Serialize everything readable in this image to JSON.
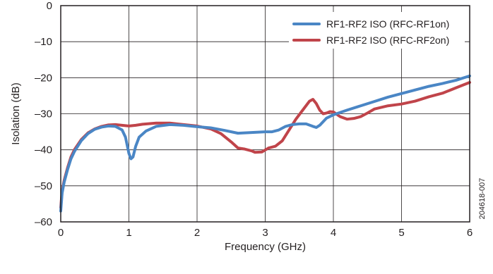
{
  "chart_data": {
    "type": "line",
    "title": "",
    "xlabel": "Frequency (GHz)",
    "ylabel": "Isolation (dB)",
    "xlim": [
      0,
      6
    ],
    "ylim": [
      -60,
      0
    ],
    "xticks": [
      0,
      1,
      2,
      3,
      4,
      5,
      6
    ],
    "yticks": [
      -60,
      -50,
      -40,
      -30,
      -20,
      -10,
      0
    ],
    "xtick_labels": [
      "0",
      "1",
      "2",
      "3",
      "4",
      "5",
      "6"
    ],
    "ytick_labels": [
      "–60",
      "–50",
      "–40",
      "–30",
      "–20",
      "–10",
      "0"
    ],
    "grid": true,
    "legend_position": "top-right",
    "figure_id": "204618-007",
    "series": [
      {
        "name": "RF1-RF2 ISO (RFC-RF1on)",
        "color": "#4a86c5",
        "points": [
          [
            0.0,
            -57
          ],
          [
            0.02,
            -52
          ],
          [
            0.05,
            -49
          ],
          [
            0.1,
            -45.5
          ],
          [
            0.15,
            -42.5
          ],
          [
            0.2,
            -40.5
          ],
          [
            0.3,
            -37.5
          ],
          [
            0.4,
            -35.5
          ],
          [
            0.5,
            -34.3
          ],
          [
            0.6,
            -33.7
          ],
          [
            0.7,
            -33.4
          ],
          [
            0.8,
            -33.5
          ],
          [
            0.9,
            -34.5
          ],
          [
            0.95,
            -36.5
          ],
          [
            1.0,
            -41
          ],
          [
            1.03,
            -42.5
          ],
          [
            1.06,
            -42
          ],
          [
            1.1,
            -39
          ],
          [
            1.15,
            -36.5
          ],
          [
            1.25,
            -34.8
          ],
          [
            1.4,
            -33.5
          ],
          [
            1.6,
            -33
          ],
          [
            1.8,
            -33.2
          ],
          [
            2.0,
            -33.6
          ],
          [
            2.2,
            -33.9
          ],
          [
            2.4,
            -34.6
          ],
          [
            2.6,
            -35.4
          ],
          [
            2.8,
            -35.2
          ],
          [
            3.0,
            -35.0
          ],
          [
            3.1,
            -35.0
          ],
          [
            3.2,
            -34.5
          ],
          [
            3.3,
            -33.5
          ],
          [
            3.4,
            -33.0
          ],
          [
            3.5,
            -32.8
          ],
          [
            3.6,
            -32.8
          ],
          [
            3.7,
            -33.5
          ],
          [
            3.75,
            -33.8
          ],
          [
            3.8,
            -33.2
          ],
          [
            3.9,
            -31.2
          ],
          [
            4.0,
            -30.3
          ],
          [
            4.2,
            -29.0
          ],
          [
            4.4,
            -27.8
          ],
          [
            4.6,
            -26.6
          ],
          [
            4.8,
            -25.4
          ],
          [
            5.0,
            -24.4
          ],
          [
            5.2,
            -23.4
          ],
          [
            5.4,
            -22.4
          ],
          [
            5.6,
            -21.6
          ],
          [
            5.8,
            -20.7
          ],
          [
            6.0,
            -19.5
          ]
        ]
      },
      {
        "name": "RF1-RF2 ISO (RFC-RF2on)",
        "color": "#c0444a",
        "points": [
          [
            0.0,
            -56
          ],
          [
            0.02,
            -51.5
          ],
          [
            0.05,
            -48.5
          ],
          [
            0.1,
            -45
          ],
          [
            0.15,
            -42
          ],
          [
            0.2,
            -40
          ],
          [
            0.3,
            -37.2
          ],
          [
            0.4,
            -35.3
          ],
          [
            0.5,
            -34.2
          ],
          [
            0.6,
            -33.5
          ],
          [
            0.7,
            -33.1
          ],
          [
            0.8,
            -33.0
          ],
          [
            0.9,
            -33.2
          ],
          [
            1.0,
            -33.4
          ],
          [
            1.1,
            -33.2
          ],
          [
            1.2,
            -32.9
          ],
          [
            1.4,
            -32.6
          ],
          [
            1.6,
            -32.6
          ],
          [
            1.8,
            -33.0
          ],
          [
            2.0,
            -33.4
          ],
          [
            2.2,
            -34.2
          ],
          [
            2.35,
            -35.5
          ],
          [
            2.5,
            -37.8
          ],
          [
            2.6,
            -39.5
          ],
          [
            2.7,
            -39.8
          ],
          [
            2.8,
            -40.3
          ],
          [
            2.85,
            -40.7
          ],
          [
            2.95,
            -40.6
          ],
          [
            3.05,
            -39.5
          ],
          [
            3.15,
            -39.0
          ],
          [
            3.25,
            -37.5
          ],
          [
            3.35,
            -34.5
          ],
          [
            3.45,
            -31.5
          ],
          [
            3.55,
            -29.0
          ],
          [
            3.65,
            -26.5
          ],
          [
            3.7,
            -26.0
          ],
          [
            3.75,
            -27.2
          ],
          [
            3.8,
            -29.0
          ],
          [
            3.85,
            -30.0
          ],
          [
            3.9,
            -29.8
          ],
          [
            3.95,
            -29.4
          ],
          [
            4.0,
            -29.5
          ],
          [
            4.1,
            -30.8
          ],
          [
            4.2,
            -31.5
          ],
          [
            4.3,
            -31.3
          ],
          [
            4.4,
            -30.8
          ],
          [
            4.5,
            -29.8
          ],
          [
            4.6,
            -28.7
          ],
          [
            4.8,
            -27.8
          ],
          [
            5.0,
            -27.3
          ],
          [
            5.2,
            -26.5
          ],
          [
            5.4,
            -25.3
          ],
          [
            5.6,
            -24.3
          ],
          [
            5.8,
            -22.8
          ],
          [
            6.0,
            -21.3
          ]
        ]
      }
    ]
  }
}
